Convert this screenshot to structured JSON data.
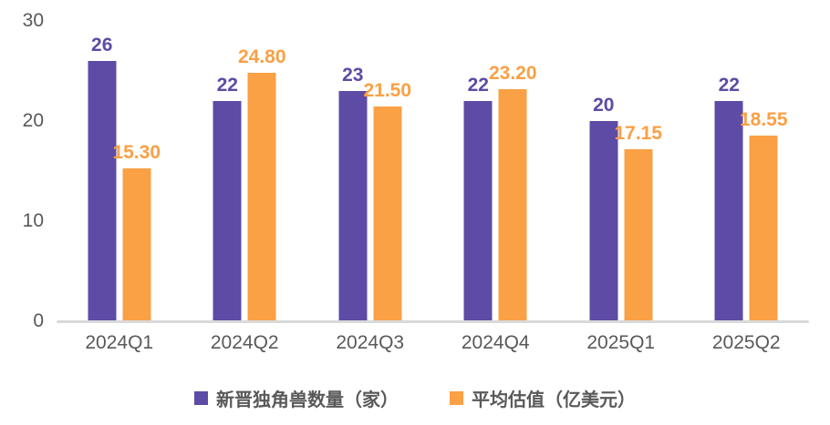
{
  "chart_data": {
    "type": "bar",
    "title": "",
    "xlabel": "",
    "ylabel": "",
    "categories": [
      "2024Q1",
      "2024Q2",
      "2024Q3",
      "2024Q4",
      "2025Q1",
      "2025Q2"
    ],
    "series": [
      {
        "name": "新晋独角兽数量（家）",
        "color": "#5d4ba5",
        "values": [
          26,
          22,
          23,
          22,
          20,
          22
        ],
        "labels": [
          "26",
          "22",
          "23",
          "22",
          "20",
          "22"
        ]
      },
      {
        "name": "平均估值（亿美元）",
        "color": "#faa045",
        "values": [
          15.3,
          24.8,
          21.5,
          23.2,
          17.15,
          18.55
        ],
        "labels": [
          "15.30",
          "24.80",
          "21.50",
          "23.20",
          "17.15",
          "18.55"
        ]
      }
    ],
    "ylim": [
      0,
      30
    ],
    "yticks": [
      0,
      10,
      20,
      30
    ],
    "grid": false,
    "legend_position": "bottom"
  },
  "colors": {
    "background": "#ffffff",
    "axis_text": "#595959",
    "axis_line": "#d9d9d9"
  }
}
